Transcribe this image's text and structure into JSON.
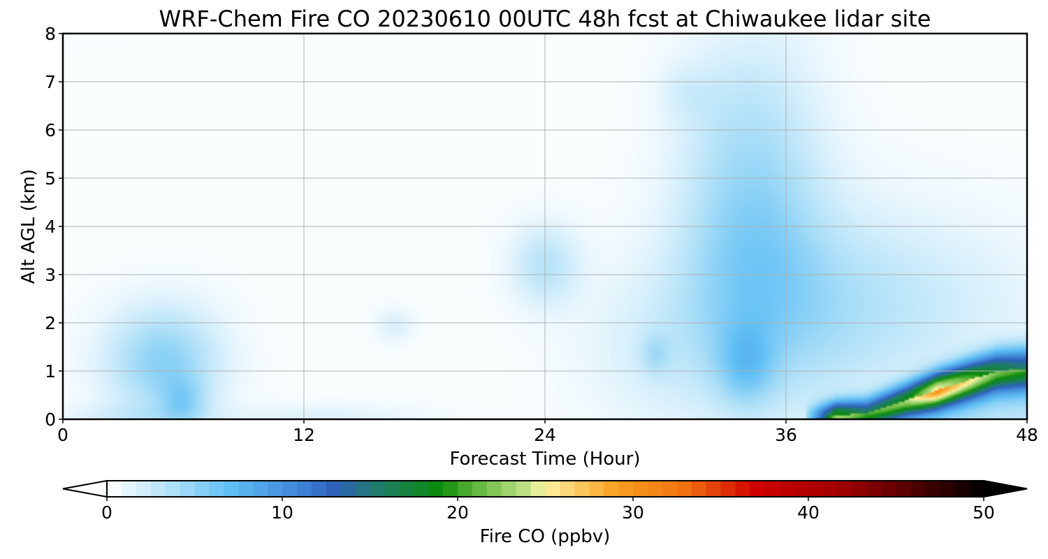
{
  "chart_data": {
    "type": "heatmap",
    "title": "WRF-Chem Fire CO  20230610 00UTC 48h fcst at Chiwaukee lidar site",
    "xlabel": "Forecast Time (Hour)",
    "ylabel": "Alt AGL (km)",
    "xlim": [
      0,
      48
    ],
    "ylim": [
      0,
      8
    ],
    "xticks": [
      "0",
      "12",
      "24",
      "36",
      "48"
    ],
    "yticks": [
      "0",
      "1",
      "2",
      "3",
      "4",
      "5",
      "6",
      "7",
      "8"
    ],
    "grid": true,
    "colorbar": {
      "label": "Fire CO  (ppbv)",
      "range": [
        0,
        50
      ],
      "ticks": [
        "0",
        "10",
        "20",
        "30",
        "40",
        "50"
      ],
      "extend": "both",
      "placement": "bottom",
      "colors": [
        {
          "value": 0,
          "color": "#ffffff"
        },
        {
          "value": 1,
          "color": "#eaf7fd"
        },
        {
          "value": 4,
          "color": "#a9def7"
        },
        {
          "value": 7,
          "color": "#5fbff5"
        },
        {
          "value": 11,
          "color": "#3f84d8"
        },
        {
          "value": 13,
          "color": "#2e5fb8"
        },
        {
          "value": 15,
          "color": "#227a77"
        },
        {
          "value": 19,
          "color": "#0a8a0a"
        },
        {
          "value": 21,
          "color": "#5fb63a"
        },
        {
          "value": 24,
          "color": "#c3e38a"
        },
        {
          "value": 25,
          "color": "#fff2a0"
        },
        {
          "value": 29,
          "color": "#f8a020"
        },
        {
          "value": 33,
          "color": "#f07010"
        },
        {
          "value": 37,
          "color": "#d00000"
        },
        {
          "value": 42,
          "color": "#a00000"
        },
        {
          "value": 46,
          "color": "#500000"
        },
        {
          "value": 50,
          "color": "#000000"
        }
      ]
    },
    "features": [
      {
        "x": 5,
        "y": 1.2,
        "sx": 2.0,
        "sy": 0.8,
        "v": 5
      },
      {
        "x": 6,
        "y": 0.35,
        "sx": 0.8,
        "sy": 0.35,
        "v": 3
      },
      {
        "x": 3.5,
        "y": 0.05,
        "sx": 2.5,
        "sy": 0.2,
        "v": 1.5
      },
      {
        "x": 13,
        "y": 0.05,
        "sx": 3.5,
        "sy": 0.2,
        "v": 1.2
      },
      {
        "x": 16.5,
        "y": 1.95,
        "sx": 0.7,
        "sy": 0.25,
        "v": 1.5
      },
      {
        "x": 24,
        "y": 3.2,
        "sx": 1.2,
        "sy": 0.6,
        "v": 3
      },
      {
        "x": 30,
        "y": 1.5,
        "sx": 3.0,
        "sy": 1.2,
        "v": 1.5
      },
      {
        "x": 33,
        "y": 3.8,
        "sx": 2.0,
        "sy": 1.7,
        "v": 2.5
      },
      {
        "x": 35.5,
        "y": 4.5,
        "sx": 2.0,
        "sy": 2.3,
        "v": 2.5
      },
      {
        "x": 36.5,
        "y": 2.2,
        "sx": 4.0,
        "sy": 1.6,
        "v": 2.5
      },
      {
        "x": 42,
        "y": 2.4,
        "sx": 5.0,
        "sy": 1.3,
        "v": 1.8
      },
      {
        "x": 34,
        "y": 1.1,
        "sx": 1.0,
        "sy": 0.6,
        "v": 3.5
      },
      {
        "x": 29.5,
        "y": 1.35,
        "sx": 0.5,
        "sy": 0.3,
        "v": 2
      },
      {
        "x": 33,
        "y": 6.5,
        "sx": 2.0,
        "sy": 1.2,
        "v": 1.2
      },
      {
        "x": 31,
        "y": 6.8,
        "sx": 1.0,
        "sy": 0.4,
        "v": 1.0
      }
    ],
    "plume": [
      {
        "x": 37,
        "y": 0.02,
        "v": 2
      },
      {
        "x": 38.5,
        "y": 0.08,
        "v": 18
      },
      {
        "x": 40,
        "y": 0.12,
        "v": 14
      },
      {
        "x": 42,
        "y": 0.4,
        "v": 17
      },
      {
        "x": 43.5,
        "y": 0.6,
        "v": 24
      },
      {
        "x": 45,
        "y": 0.8,
        "v": 20
      },
      {
        "x": 46.5,
        "y": 1.0,
        "v": 16
      },
      {
        "x": 48,
        "y": 1.05,
        "v": 14
      }
    ]
  }
}
